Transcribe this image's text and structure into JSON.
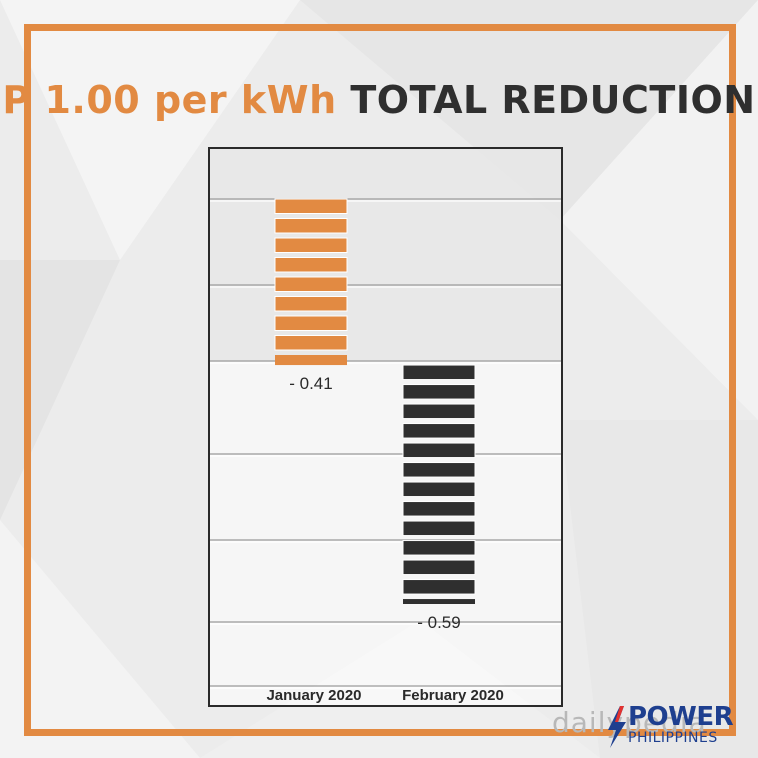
{
  "title": {
    "accent_text": "P 1.00 per kWh",
    "rest_text": "TOTAL REDUCTION"
  },
  "colors": {
    "accent": "#e28a42",
    "dark": "#2f2f2f",
    "frame": "#e28a42"
  },
  "chart_data": {
    "type": "bar",
    "categories": [
      "January 2020",
      "February 2020"
    ],
    "values": [
      -0.41,
      -0.59
    ],
    "data_labels": [
      "- 0.41",
      "- 0.59"
    ],
    "bar_colors": [
      "#e28a42",
      "#2f2f2f"
    ],
    "grid": true,
    "legend": "none"
  },
  "watermark": {
    "text": "dailypedia"
  },
  "logo": {
    "word": "POWER",
    "sub": "PHILIPPINES"
  }
}
